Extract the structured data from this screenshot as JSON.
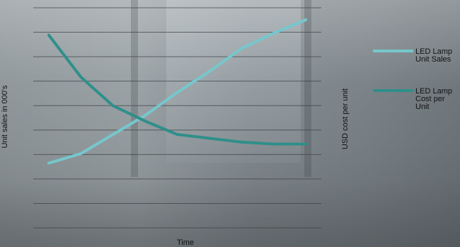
{
  "chart_data": {
    "type": "line",
    "title": "",
    "xlabel": "Time",
    "ylabel": "Unit sales in 000's",
    "y2label": "USD cost per unit",
    "x": [
      1,
      2,
      3,
      4,
      5,
      6,
      7,
      8,
      9
    ],
    "ylim": [
      0,
      9
    ],
    "grid": true,
    "legend_position": "right",
    "series": [
      {
        "name": "LED Lamp Unit Sales",
        "name_lines": [
          "LED Lamp",
          "Unit Sales"
        ],
        "color": "#76c7cc",
        "values": [
          1.5,
          2.0,
          3.0,
          4.0,
          5.2,
          6.3,
          7.5,
          8.3,
          9.0
        ]
      },
      {
        "name": "LED Lamp Cost per Unit",
        "name_lines": [
          "LED Lamp",
          "Cost per",
          "Unit"
        ],
        "color": "#2f8f8a",
        "values": [
          8.2,
          6.0,
          4.5,
          3.7,
          3.0,
          2.8,
          2.6,
          2.5,
          2.5
        ]
      }
    ]
  }
}
